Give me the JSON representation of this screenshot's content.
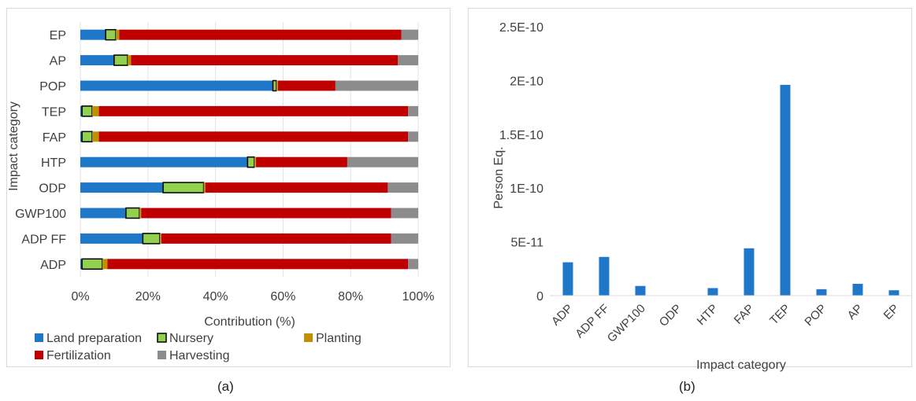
{
  "chart_data": [
    {
      "panel_label": "(a)",
      "type": "bar",
      "orientation": "horizontal",
      "stacked": true,
      "xlabel": "Contribution (%)",
      "ylabel": "Impact category",
      "xlim": [
        0,
        100
      ],
      "x_ticks": [
        "0%",
        "20%",
        "40%",
        "60%",
        "80%",
        "100%"
      ],
      "categories": [
        "EP",
        "AP",
        "POP",
        "TEP",
        "FAP",
        "HTP",
        "ODP",
        "GWP100",
        "ADP FF",
        "ADP"
      ],
      "series": [
        {
          "name": "Land preparation",
          "color": "#1f77c8",
          "values": [
            7.5,
            10,
            57,
            0.5,
            0.5,
            49.5,
            24.5,
            13.5,
            18.5,
            0.5
          ]
        },
        {
          "name": "Nursery",
          "color": "#92d050",
          "values": [
            3,
            4,
            1,
            3,
            3,
            2,
            12,
            4,
            5,
            6
          ]
        },
        {
          "name": "Planting",
          "color": "#bf9000",
          "values": [
            1,
            1,
            0.5,
            2,
            2,
            0.5,
            0.5,
            0.5,
            0.5,
            1.5
          ]
        },
        {
          "name": "Fertilization",
          "color": "#c00000",
          "values": [
            83.5,
            79,
            17,
            91.5,
            91.5,
            27,
            54,
            74,
            68,
            89
          ]
        },
        {
          "name": "Harvesting",
          "color": "#8c8c8c",
          "values": [
            5,
            6,
            24.5,
            3,
            3,
            21,
            9,
            8,
            8,
            3
          ]
        }
      ],
      "legend_position": "bottom"
    },
    {
      "panel_label": "(b)",
      "type": "bar",
      "xlabel": "Impact category",
      "ylabel": "Person Eq.",
      "ylim": [
        0,
        2.5e-10
      ],
      "y_ticks": [
        {
          "value": 0,
          "label": "0"
        },
        {
          "value": 5e-11,
          "label": "5E-11"
        },
        {
          "value": 1e-10,
          "label": "1E-10"
        },
        {
          "value": 1.5e-10,
          "label": "1.5E-10"
        },
        {
          "value": 2e-10,
          "label": "2E-10"
        },
        {
          "value": 2.5e-10,
          "label": "2.5E-10"
        }
      ],
      "categories": [
        "ADP",
        "ADP FF",
        "GWP100",
        "ODP",
        "HTP",
        "FAP",
        "TEP",
        "POP",
        "AP",
        "EP"
      ],
      "values": [
        3.1e-11,
        3.6e-11,
        9e-12,
        0,
        7e-12,
        4.4e-11,
        1.96e-10,
        6e-12,
        1.1e-11,
        5e-12
      ],
      "bar_color": "#1f77c8"
    }
  ]
}
